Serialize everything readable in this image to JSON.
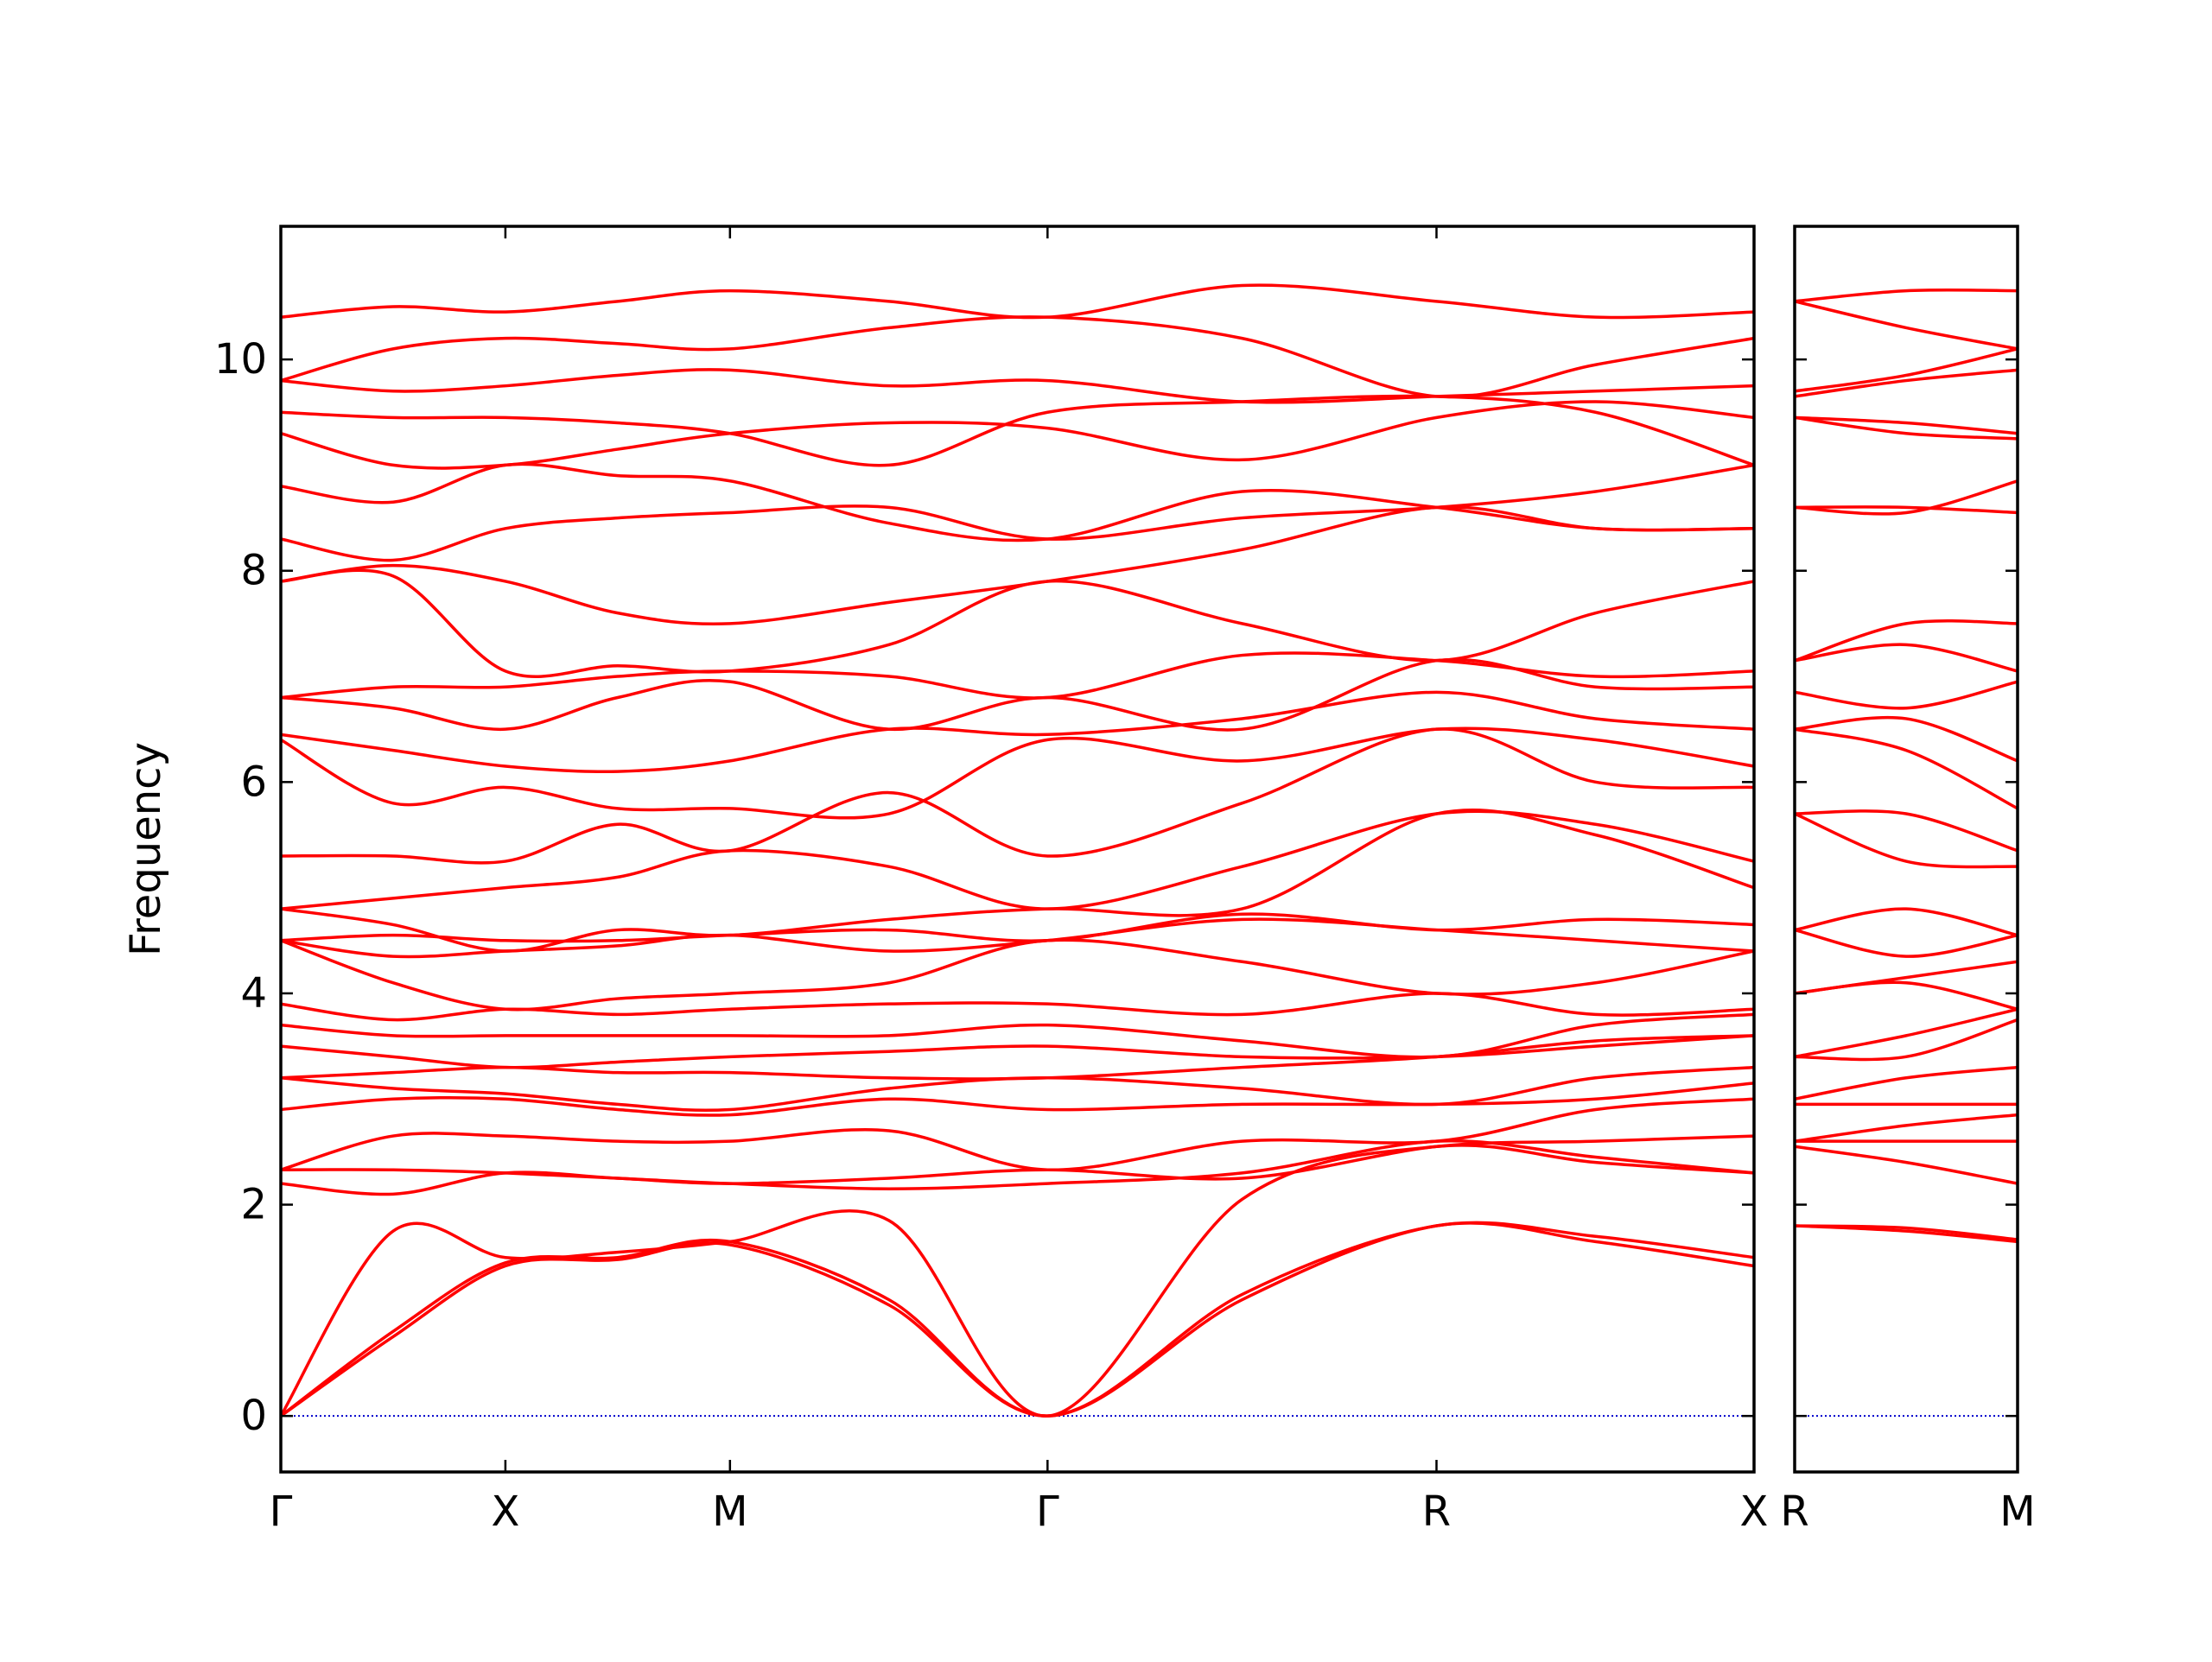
{
  "chart_data": [
    {
      "type": "line",
      "ylabel": "Frequency",
      "color": "#ff0000",
      "x": [
        0,
        0.25,
        0.5,
        0.75,
        1.0,
        1.354,
        1.707,
        2.14,
        2.573,
        2.927,
        3.28
      ],
      "xlim": [
        0,
        3.28
      ],
      "xticks": [
        {
          "value": 0,
          "label": "Γ"
        },
        {
          "value": 0.5,
          "label": "X"
        },
        {
          "value": 1.0,
          "label": "M"
        },
        {
          "value": 1.707,
          "label": "Γ"
        },
        {
          "value": 2.573,
          "label": "R"
        },
        {
          "value": 3.28,
          "label": "X"
        }
      ],
      "ylim": [
        -0.53,
        11.26
      ],
      "yticks": [
        0,
        2,
        4,
        6,
        8,
        10
      ],
      "show_ytick_labels": true,
      "zero_line": {
        "value": 0,
        "color": "#0000cc"
      },
      "series": [
        {
          "values": [
            0,
            0.75,
            1.42,
            1.48,
            1.62,
            1.05,
            0,
            1.1,
            1.8,
            1.65,
            1.42
          ]
        },
        {
          "values": [
            0,
            0.8,
            1.45,
            1.5,
            1.65,
            1.1,
            0,
            1.15,
            1.8,
            1.7,
            1.5
          ]
        },
        {
          "values": [
            0,
            1.75,
            1.5,
            1.55,
            1.65,
            1.85,
            0,
            2.05,
            2.55,
            2.4,
            2.3
          ]
        },
        {
          "values": [
            2.2,
            2.1,
            2.3,
            2.25,
            2.2,
            2.15,
            2.2,
            2.3,
            2.6,
            2.45,
            2.3
          ]
        },
        {
          "values": [
            2.33,
            2.33,
            2.3,
            2.25,
            2.2,
            2.25,
            2.33,
            2.25,
            2.55,
            2.6,
            2.65
          ]
        },
        {
          "values": [
            2.33,
            2.65,
            2.65,
            2.6,
            2.6,
            2.7,
            2.33,
            2.6,
            2.6,
            2.9,
            3.0
          ]
        },
        {
          "values": [
            2.9,
            3.0,
            3.0,
            2.9,
            2.85,
            3.0,
            2.9,
            2.95,
            2.95,
            3.0,
            3.15
          ]
        },
        {
          "values": [
            3.2,
            3.1,
            3.05,
            2.95,
            2.9,
            3.1,
            3.2,
            3.1,
            2.95,
            3.2,
            3.3
          ]
        },
        {
          "values": [
            3.2,
            3.25,
            3.3,
            3.25,
            3.25,
            3.2,
            3.2,
            3.3,
            3.4,
            3.55,
            3.6
          ]
        },
        {
          "values": [
            3.5,
            3.4,
            3.3,
            3.35,
            3.4,
            3.45,
            3.5,
            3.4,
            3.4,
            3.5,
            3.6
          ]
        },
        {
          "values": [
            3.7,
            3.6,
            3.6,
            3.6,
            3.6,
            3.6,
            3.7,
            3.55,
            3.4,
            3.7,
            3.8
          ]
        },
        {
          "values": [
            3.9,
            3.75,
            3.85,
            3.8,
            3.85,
            3.9,
            3.9,
            3.8,
            4.0,
            3.8,
            3.85
          ]
        },
        {
          "values": [
            4.5,
            4.1,
            3.85,
            3.95,
            4.0,
            4.1,
            4.5,
            4.3,
            4.0,
            4.1,
            4.4
          ]
        },
        {
          "values": [
            4.5,
            4.35,
            4.4,
            4.45,
            4.55,
            4.4,
            4.5,
            4.7,
            4.6,
            4.5,
            4.4
          ]
        },
        {
          "values": [
            4.5,
            4.55,
            4.5,
            4.5,
            4.55,
            4.6,
            4.5,
            4.75,
            4.6,
            4.7,
            4.65
          ]
        },
        {
          "values": [
            4.8,
            4.65,
            4.4,
            4.6,
            4.55,
            4.7,
            4.8,
            4.8,
            5.7,
            5.5,
            5.0
          ]
        },
        {
          "values": [
            4.8,
            4.9,
            5.0,
            5.1,
            5.35,
            5.2,
            4.8,
            5.2,
            5.7,
            5.6,
            5.25
          ]
        },
        {
          "values": [
            5.3,
            5.3,
            5.25,
            5.6,
            5.35,
            5.9,
            5.3,
            5.8,
            6.5,
            6.0,
            5.95
          ]
        },
        {
          "values": [
            6.4,
            5.8,
            5.95,
            5.75,
            5.75,
            5.7,
            6.4,
            6.2,
            6.5,
            6.4,
            6.15
          ]
        },
        {
          "values": [
            6.45,
            6.3,
            6.15,
            6.1,
            6.2,
            6.5,
            6.45,
            6.6,
            6.85,
            6.6,
            6.5
          ]
        },
        {
          "values": [
            6.8,
            6.7,
            6.5,
            6.8,
            6.95,
            6.5,
            6.8,
            6.5,
            7.15,
            6.9,
            6.9
          ]
        },
        {
          "values": [
            6.8,
            6.9,
            6.9,
            7.0,
            7.05,
            7.0,
            6.8,
            7.2,
            7.15,
            7.0,
            7.05
          ]
        },
        {
          "values": [
            7.9,
            7.95,
            7.05,
            7.1,
            7.05,
            7.3,
            7.9,
            7.5,
            7.15,
            7.6,
            7.9
          ]
        },
        {
          "values": [
            7.9,
            8.05,
            7.9,
            7.6,
            7.5,
            7.7,
            7.9,
            8.2,
            8.6,
            8.4,
            8.4
          ]
        },
        {
          "values": [
            8.3,
            8.1,
            8.4,
            8.5,
            8.55,
            8.6,
            8.3,
            8.5,
            8.6,
            8.75,
            9.0
          ]
        },
        {
          "values": [
            8.8,
            8.65,
            9.0,
            8.9,
            8.85,
            8.45,
            8.3,
            8.75,
            8.6,
            8.4,
            8.4
          ]
        },
        {
          "values": [
            9.3,
            9.0,
            9.0,
            9.15,
            9.3,
            9.4,
            9.35,
            9.05,
            9.45,
            9.6,
            9.45
          ]
        },
        {
          "values": [
            9.5,
            9.45,
            9.45,
            9.4,
            9.3,
            9.0,
            9.5,
            9.6,
            9.65,
            9.5,
            9.0
          ]
        },
        {
          "values": [
            9.8,
            9.7,
            9.75,
            9.85,
            9.9,
            9.75,
            9.8,
            9.6,
            9.65,
            9.7,
            9.75
          ]
        },
        {
          "values": [
            9.8,
            10.1,
            10.2,
            10.15,
            10.1,
            10.3,
            10.4,
            10.2,
            9.65,
            9.95,
            10.2
          ]
        },
        {
          "values": [
            10.4,
            10.5,
            10.45,
            10.55,
            10.65,
            10.55,
            10.4,
            10.7,
            10.55,
            10.4,
            10.45
          ]
        }
      ]
    },
    {
      "type": "line",
      "color": "#ff0000",
      "x": [
        0,
        0.25,
        0.5
      ],
      "xlim": [
        0,
        0.5
      ],
      "xticks": [
        {
          "value": 0,
          "label": "R"
        },
        {
          "value": 0.5,
          "label": "M"
        }
      ],
      "ylim": [
        -0.53,
        11.26
      ],
      "yticks": [
        0,
        2,
        4,
        6,
        8,
        10
      ],
      "show_ytick_labels": false,
      "zero_line": {
        "value": 0,
        "color": "#0000cc"
      },
      "series": [
        {
          "values": [
            1.8,
            1.75,
            1.65
          ]
        },
        {
          "values": [
            1.8,
            1.78,
            1.67
          ]
        },
        {
          "values": [
            2.55,
            2.4,
            2.2
          ]
        },
        {
          "values": [
            2.6,
            2.6,
            2.6
          ]
        },
        {
          "values": [
            2.6,
            2.75,
            2.85
          ]
        },
        {
          "values": [
            2.95,
            2.95,
            2.95
          ]
        },
        {
          "values": [
            3.0,
            3.2,
            3.3
          ]
        },
        {
          "values": [
            3.4,
            3.4,
            3.75
          ]
        },
        {
          "values": [
            3.4,
            3.6,
            3.85
          ]
        },
        {
          "values": [
            4.0,
            4.15,
            4.3
          ]
        },
        {
          "values": [
            4.0,
            4.1,
            3.85
          ]
        },
        {
          "values": [
            4.6,
            4.8,
            4.55
          ]
        },
        {
          "values": [
            4.6,
            4.35,
            4.55
          ]
        },
        {
          "values": [
            5.7,
            5.7,
            5.35
          ]
        },
        {
          "values": [
            5.7,
            5.25,
            5.2
          ]
        },
        {
          "values": [
            6.5,
            6.3,
            5.75
          ]
        },
        {
          "values": [
            6.5,
            6.6,
            6.2
          ]
        },
        {
          "values": [
            6.85,
            6.7,
            6.95
          ]
        },
        {
          "values": [
            7.15,
            7.3,
            7.05
          ]
        },
        {
          "values": [
            7.15,
            7.5,
            7.5
          ]
        },
        {
          "values": [
            8.6,
            8.55,
            8.85
          ]
        },
        {
          "values": [
            8.6,
            8.6,
            8.55
          ]
        },
        {
          "values": [
            9.45,
            9.4,
            9.3
          ]
        },
        {
          "values": [
            9.45,
            9.3,
            9.25
          ]
        },
        {
          "values": [
            9.65,
            9.8,
            9.9
          ]
        },
        {
          "values": [
            9.7,
            9.85,
            10.1
          ]
        },
        {
          "values": [
            10.55,
            10.65,
            10.65
          ]
        },
        {
          "values": [
            10.55,
            10.3,
            10.1
          ]
        }
      ]
    }
  ]
}
